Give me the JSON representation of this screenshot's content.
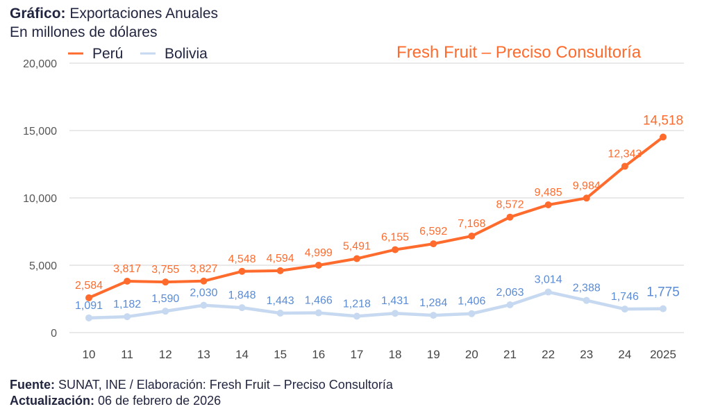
{
  "header": {
    "title_label": "Gráfico:",
    "title_text": "Exportaciones Anuales",
    "subtitle": "En millones de dólares",
    "brand": "Fresh Fruit – Preciso Consultoría"
  },
  "footer": {
    "source_label": "Fuente:",
    "source_text": "SUNAT, INE / Elaboración: Fresh Fruit – Preciso Consultoría",
    "update_label": "Actualización:",
    "update_text": "06 de febrero de 2026"
  },
  "chart_data": {
    "type": "line",
    "title": "Exportaciones Anuales",
    "ylabel": "En millones de dólares",
    "x": [
      "10",
      "11",
      "12",
      "13",
      "14",
      "15",
      "16",
      "17",
      "18",
      "19",
      "20",
      "21",
      "22",
      "23",
      "24",
      "2025"
    ],
    "ylim": [
      0,
      20000
    ],
    "yticks": [
      0,
      5000,
      10000,
      15000,
      20000
    ],
    "ytick_labels": [
      "0",
      "5,000",
      "10,000",
      "15,000",
      "20,000"
    ],
    "grid": true,
    "legend": "top-left",
    "series": [
      {
        "name": "Perú",
        "color": "#ff6b2c",
        "values": [
          2584,
          3817,
          3755,
          3827,
          4548,
          4594,
          4999,
          5491,
          6155,
          6592,
          7168,
          8572,
          9485,
          9984,
          12343,
          14518
        ]
      },
      {
        "name": "Bolivia",
        "color": "#c6d9f0",
        "label_color": "#5a8bd4",
        "values": [
          1091,
          1182,
          1590,
          2030,
          1848,
          1443,
          1466,
          1218,
          1431,
          1284,
          1406,
          2063,
          3014,
          2388,
          1746,
          1775
        ]
      }
    ]
  }
}
